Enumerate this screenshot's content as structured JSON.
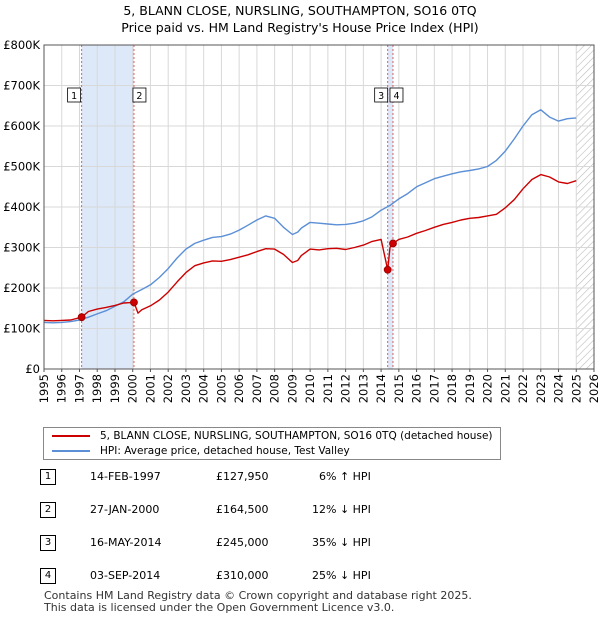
{
  "title": "5, BLANN CLOSE, NURSLING, SOUTHAMPTON, SO16 0TQ",
  "subtitle": "Price paid vs. HM Land Registry's House Price Index (HPI)",
  "legend": {
    "property": "5, BLANN CLOSE, NURSLING, SOUTHAMPTON, SO16 0TQ (detached house)",
    "hpi": "HPI: Average price, detached house, Test Valley"
  },
  "colors": {
    "property": "#cc0000",
    "hpi": "#5b8fd6",
    "shade": "#dde8f8",
    "grid": "#d8d8d8",
    "sale_line": "#e06060"
  },
  "transactions": [
    {
      "num": "1",
      "date": "14-FEB-1997",
      "price": "£127,950",
      "delta": "6% ↑ HPI"
    },
    {
      "num": "2",
      "date": "27-JAN-2000",
      "price": "£164,500",
      "delta": "12% ↓ HPI"
    },
    {
      "num": "3",
      "date": "16-MAY-2014",
      "price": "£245,000",
      "delta": "35% ↓ HPI"
    },
    {
      "num": "4",
      "date": "03-SEP-2014",
      "price": "£310,000",
      "delta": "25% ↓ HPI"
    }
  ],
  "footer": {
    "line1": "Contains HM Land Registry data © Crown copyright and database right 2025.",
    "line2": "This data is licensed under the Open Government Licence v3.0."
  },
  "chart_data": {
    "type": "line",
    "title": "5, BLANN CLOSE, NURSLING, SOUTHAMPTON, SO16 0TQ",
    "subtitle": "Price paid vs. HM Land Registry's House Price Index (HPI)",
    "xlabel": "",
    "ylabel": "",
    "xlim": [
      1995,
      2026
    ],
    "ylim": [
      0,
      800000
    ],
    "x_ticks": [
      1995,
      1996,
      1997,
      1998,
      1999,
      2000,
      2001,
      2002,
      2003,
      2004,
      2005,
      2006,
      2007,
      2008,
      2009,
      2010,
      2011,
      2012,
      2013,
      2014,
      2015,
      2016,
      2017,
      2018,
      2019,
      2020,
      2021,
      2022,
      2023,
      2024,
      2025,
      2026
    ],
    "y_ticks": [
      {
        "value": 0,
        "label": "£0"
      },
      {
        "value": 100000,
        "label": "£100K"
      },
      {
        "value": 200000,
        "label": "£200K"
      },
      {
        "value": 300000,
        "label": "£300K"
      },
      {
        "value": 400000,
        "label": "£400K"
      },
      {
        "value": 500000,
        "label": "£500K"
      },
      {
        "value": 600000,
        "label": "£600K"
      },
      {
        "value": 700000,
        "label": "£700K"
      },
      {
        "value": 800000,
        "label": "£800K"
      }
    ],
    "grid": true,
    "shaded_ranges": [
      [
        1997.12,
        2000.07
      ],
      [
        2014.37,
        2014.67
      ]
    ],
    "hatched_from": 2025.0,
    "sales": [
      {
        "label": "1",
        "x": 1997.12,
        "y": 127950
      },
      {
        "label": "2",
        "x": 2000.07,
        "y": 164500
      },
      {
        "label": "3",
        "x": 2014.37,
        "y": 245000
      },
      {
        "label": "4",
        "x": 2014.67,
        "y": 310000
      }
    ],
    "series": [
      {
        "name": "5, BLANN CLOSE, NURSLING, SOUTHAMPTON, SO16 0TQ (detached house)",
        "x": [
          1995.0,
          1995.5,
          1996.0,
          1996.5,
          1997.12,
          1997.5,
          1998.0,
          1998.5,
          1999.0,
          1999.5,
          2000.07,
          2000.3,
          2000.5,
          2001.0,
          2001.5,
          2002.0,
          2002.5,
          2003.0,
          2003.5,
          2004.0,
          2004.5,
          2005.0,
          2005.5,
          2006.0,
          2006.5,
          2007.0,
          2007.5,
          2008.0,
          2008.5,
          2009.0,
          2009.3,
          2009.5,
          2010.0,
          2010.5,
          2011.0,
          2011.5,
          2012.0,
          2012.5,
          2013.0,
          2013.5,
          2014.0,
          2014.37,
          2014.5,
          2014.67,
          2015.0,
          2015.5,
          2016.0,
          2016.5,
          2017.0,
          2017.5,
          2018.0,
          2018.5,
          2019.0,
          2019.5,
          2020.0,
          2020.5,
          2021.0,
          2021.5,
          2022.0,
          2022.5,
          2023.0,
          2023.5,
          2024.0,
          2024.5,
          2025.0
        ],
        "y": [
          120000,
          119000,
          120000,
          121000,
          127950,
          142000,
          148000,
          152000,
          157000,
          163000,
          164500,
          138000,
          146000,
          156000,
          170000,
          190000,
          215000,
          238000,
          255000,
          262000,
          267000,
          266000,
          270000,
          276000,
          282000,
          290000,
          297000,
          296000,
          283000,
          263000,
          268000,
          280000,
          296000,
          294000,
          297000,
          298000,
          295000,
          300000,
          306000,
          315000,
          320000,
          245000,
          300000,
          310000,
          320000,
          326000,
          335000,
          342000,
          350000,
          357000,
          362000,
          368000,
          372000,
          374000,
          378000,
          382000,
          398000,
          418000,
          445000,
          468000,
          480000,
          474000,
          462000,
          458000,
          465000
        ]
      },
      {
        "name": "HPI: Average price, detached house, Test Valley",
        "x": [
          1995.0,
          1995.5,
          1996.0,
          1996.5,
          1997.0,
          1997.5,
          1998.0,
          1998.5,
          1999.0,
          1999.5,
          2000.0,
          2000.5,
          2001.0,
          2001.5,
          2002.0,
          2002.5,
          2003.0,
          2003.5,
          2004.0,
          2004.5,
          2005.0,
          2005.5,
          2006.0,
          2006.5,
          2007.0,
          2007.5,
          2008.0,
          2008.5,
          2009.0,
          2009.3,
          2009.5,
          2010.0,
          2010.5,
          2011.0,
          2011.5,
          2012.0,
          2012.5,
          2013.0,
          2013.5,
          2014.0,
          2014.5,
          2015.0,
          2015.5,
          2016.0,
          2016.5,
          2017.0,
          2017.5,
          2018.0,
          2018.5,
          2019.0,
          2019.5,
          2020.0,
          2020.5,
          2021.0,
          2021.5,
          2022.0,
          2022.5,
          2023.0,
          2023.5,
          2024.0,
          2024.5,
          2025.0
        ],
        "y": [
          115000,
          114000,
          115000,
          117000,
          121000,
          128000,
          136000,
          144000,
          155000,
          166000,
          185000,
          196000,
          208000,
          226000,
          248000,
          274000,
          296000,
          310000,
          318000,
          325000,
          327000,
          333000,
          343000,
          355000,
          368000,
          378000,
          372000,
          350000,
          332000,
          338000,
          348000,
          362000,
          360000,
          358000,
          356000,
          357000,
          360000,
          366000,
          376000,
          392000,
          404000,
          420000,
          433000,
          450000,
          460000,
          470000,
          476000,
          482000,
          487000,
          490000,
          494000,
          500000,
          515000,
          538000,
          568000,
          600000,
          628000,
          640000,
          622000,
          612000,
          618000,
          620000
        ]
      }
    ]
  }
}
